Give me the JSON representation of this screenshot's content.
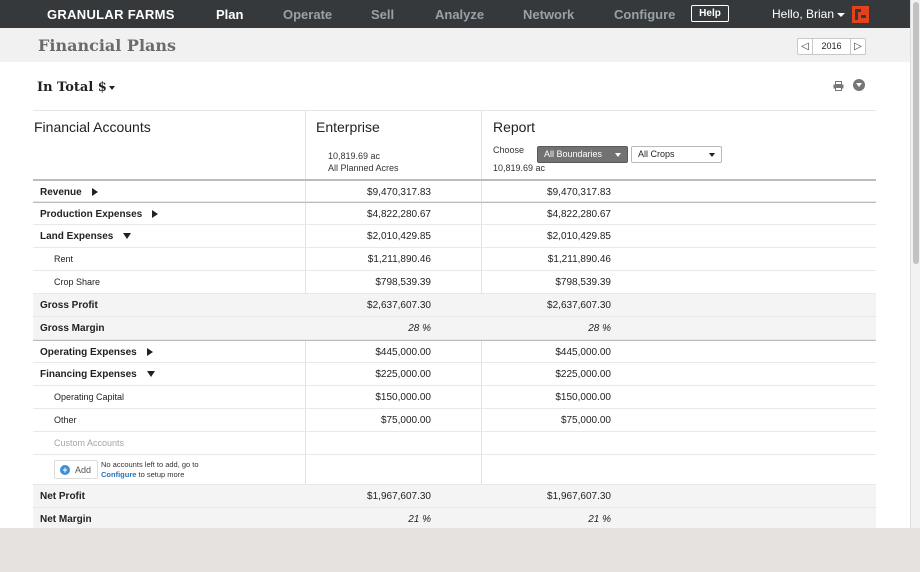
{
  "nav": {
    "brand": "GRANULAR FARMS",
    "items": [
      "Plan",
      "Operate",
      "Sell",
      "Analyze",
      "Network",
      "Configure"
    ],
    "active": "Plan",
    "help_label": "Help",
    "user_greeting": "Hello, Brian"
  },
  "header": {
    "title": "Financial Plans",
    "year": "2016"
  },
  "toolbar": {
    "view_label": "In Total $"
  },
  "table": {
    "col_accounts": "Financial Accounts",
    "col_enterprise": "Enterprise",
    "col_report": "Report",
    "enterprise_acres": "10,819.69 ac",
    "enterprise_subtitle": "All Planned Acres",
    "report_choose_label": "Choose",
    "report_boundaries": "All Boundaries",
    "report_crops": "All Crops",
    "report_acres": "10,819.69 ac",
    "rows": [
      {
        "label": "Revenue",
        "enterprise": "$9,470,317.83",
        "report": "$9,470,317.83"
      },
      {
        "label": "Production Expenses",
        "enterprise": "$4,822,280.67",
        "report": "$4,822,280.67"
      },
      {
        "label": "Land Expenses",
        "enterprise": "$2,010,429.85",
        "report": "$2,010,429.85"
      },
      {
        "label": "Rent",
        "enterprise": "$1,211,890.46",
        "report": "$1,211,890.46"
      },
      {
        "label": "Crop Share",
        "enterprise": "$798,539.39",
        "report": "$798,539.39"
      },
      {
        "label": "Gross Profit",
        "enterprise": "$2,637,607.30",
        "report": "$2,637,607.30"
      },
      {
        "label": "Gross Margin",
        "enterprise": "28 %",
        "report": "28 %"
      },
      {
        "label": "Operating Expenses",
        "enterprise": "$445,000.00",
        "report": "$445,000.00"
      },
      {
        "label": "Financing Expenses",
        "enterprise": "$225,000.00",
        "report": "$225,000.00"
      },
      {
        "label": "Operating Capital",
        "enterprise": "$150,000.00",
        "report": "$150,000.00"
      },
      {
        "label": "Other",
        "enterprise": "$75,000.00",
        "report": "$75,000.00"
      },
      {
        "label": "Custom Accounts"
      },
      {
        "label": "Net Profit",
        "enterprise": "$1,967,607.30",
        "report": "$1,967,607.30"
      },
      {
        "label": "Net Margin",
        "enterprise": "21 %",
        "report": "21 %"
      }
    ],
    "add": {
      "label": "Add",
      "note_line1": "No accounts left to add, go to",
      "note_link": "Configure",
      "note_line2": " to setup more"
    }
  },
  "icons": [
    "logo-icon",
    "print-icon",
    "download-icon",
    "plus-icon",
    "expand-arrow-icon",
    "collapse-arrow-icon"
  ],
  "colors": {
    "nav_bg": "#35393c",
    "brand_red": "#e2431b",
    "link_blue": "#2a73b8"
  }
}
